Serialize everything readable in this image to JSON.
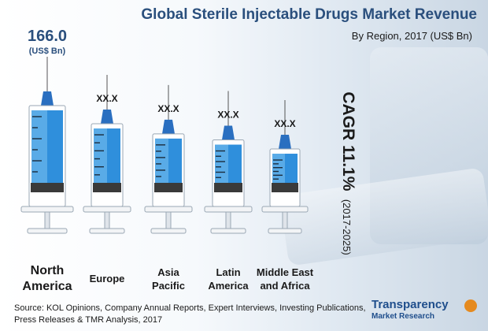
{
  "title": "Global Sterile Injectable Drugs Market Revenue",
  "subtitle": "By Region, 2017 (US$ Bn)",
  "cagr": {
    "main": "CAGR 11.1%",
    "period": "(2017-2025)"
  },
  "source": "Source: KOL Opinions, Company Annual Reports, Expert Interviews, Investing Publications, Press Releases & TMR Analysis, 2017",
  "logo": {
    "line1": "Transparency",
    "line2": "Market Research"
  },
  "colors": {
    "title": "#2a4f7d",
    "liquid": "#2f8fdc",
    "liquid_light": "#7cc3f0",
    "cap": "#2a6fc0",
    "plunger_dark": "#3a3a3a",
    "barrel": "#ffffff"
  },
  "chart_data": {
    "type": "bar",
    "title": "Global Sterile Injectable Drugs Market Revenue",
    "subtitle": "By Region, 2017 (US$ Bn)",
    "categories": [
      "North America",
      "Europe",
      "Asia Pacific",
      "Latin America",
      "Middle East and Africa"
    ],
    "category_lines": [
      [
        "North",
        "America"
      ],
      [
        "Europe"
      ],
      [
        "Asia",
        "Pacific"
      ],
      [
        "Latin",
        "America"
      ],
      [
        "Middle East",
        "and Africa"
      ]
    ],
    "value_labels": [
      "166.0",
      "XX.X",
      "XX.X",
      "XX.X",
      "XX.X"
    ],
    "unit_label": "(US$ Bn)",
    "values": [
      166.0,
      null,
      null,
      null,
      null
    ],
    "relative_fill": [
      1.0,
      0.82,
      0.72,
      0.66,
      0.57
    ]
  }
}
